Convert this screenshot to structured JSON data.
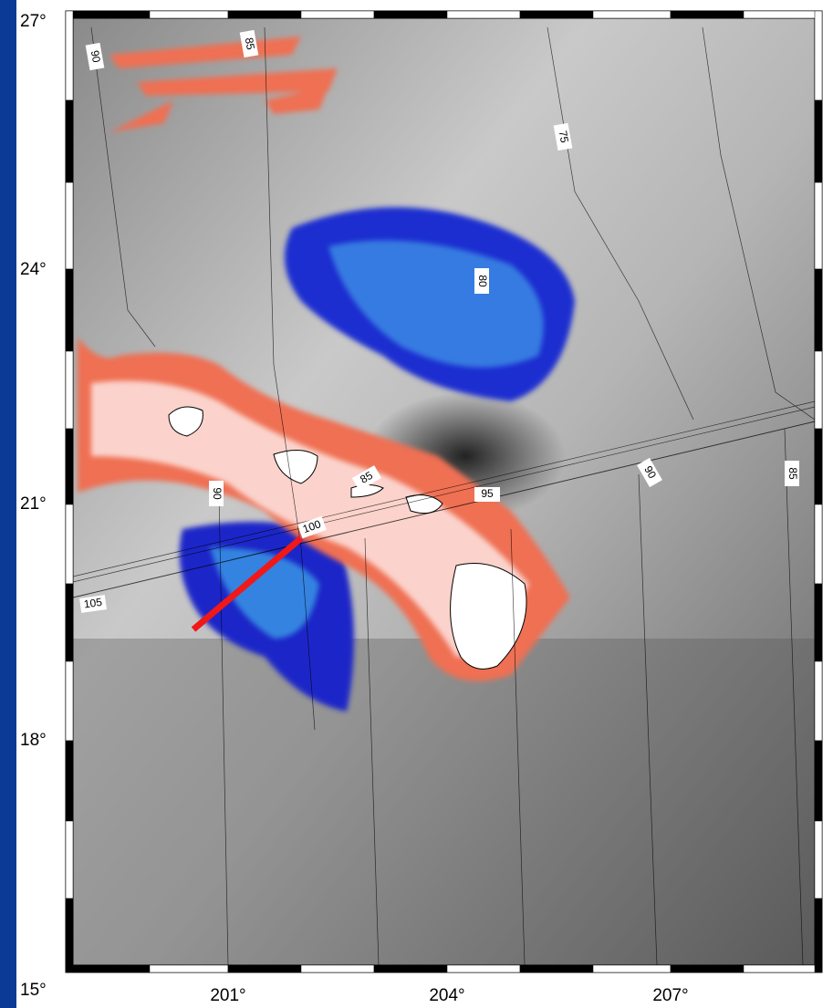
{
  "map": {
    "lat_labels": [
      "27°",
      "24°",
      "21°",
      "18°",
      "15°"
    ],
    "lon_labels": [
      "201°",
      "204°",
      "207°"
    ],
    "contour_labels": [
      "90",
      "85",
      "75",
      "80",
      "85",
      "95",
      "100",
      "105",
      "90",
      "90",
      "85"
    ]
  }
}
